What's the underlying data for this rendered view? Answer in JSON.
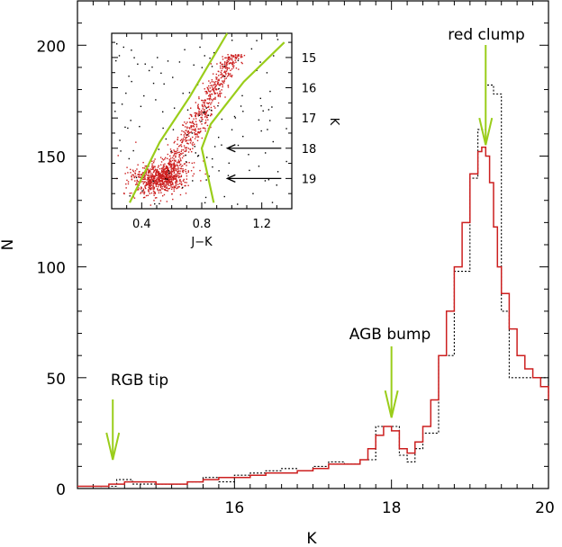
{
  "chart_data": [
    {
      "type": "line",
      "xlabel": "K",
      "ylabel": "N",
      "xlim": [
        14.0,
        20.0
      ],
      "ylim": [
        0,
        220
      ],
      "x_ticks": [
        16,
        18,
        20
      ],
      "y_ticks": [
        0,
        50,
        100,
        150,
        200
      ],
      "grid": false,
      "series": [
        {
          "style": "red solid stepped histogram",
          "color": "#cc1f1f",
          "x": [
            14.0,
            14.2,
            14.4,
            14.5,
            14.6,
            14.8,
            15.0,
            15.2,
            15.4,
            15.6,
            15.8,
            16.0,
            16.2,
            16.4,
            16.6,
            16.8,
            17.0,
            17.2,
            17.4,
            17.6,
            17.7,
            17.8,
            17.9,
            18.0,
            18.1,
            18.2,
            18.3,
            18.4,
            18.5,
            18.6,
            18.7,
            18.8,
            18.9,
            19.0,
            19.1,
            19.15,
            19.2,
            19.25,
            19.3,
            19.35,
            19.4,
            19.5,
            19.6,
            19.7,
            19.8,
            19.9,
            20.0
          ],
          "values": [
            1,
            1,
            2,
            2,
            3,
            3,
            2,
            2,
            3,
            4,
            5,
            5,
            6,
            7,
            7,
            8,
            9,
            11,
            11,
            13,
            18,
            24,
            28,
            26,
            18,
            16,
            21,
            28,
            40,
            60,
            80,
            100,
            120,
            142,
            152,
            154,
            150,
            138,
            118,
            100,
            88,
            72,
            60,
            54,
            50,
            46,
            40
          ]
        },
        {
          "style": "black dotted stepped histogram",
          "color": "#000000",
          "x": [
            14.0,
            14.3,
            14.5,
            14.7,
            15.0,
            15.4,
            15.6,
            15.8,
            16.0,
            16.2,
            16.4,
            16.6,
            16.8,
            17.0,
            17.2,
            17.4,
            17.6,
            17.8,
            18.0,
            18.1,
            18.2,
            18.3,
            18.4,
            18.6,
            18.8,
            19.0,
            19.1,
            19.2,
            19.3,
            19.4,
            19.5,
            19.7,
            20.0
          ],
          "values": [
            0,
            1,
            4,
            2,
            2,
            3,
            5,
            3,
            6,
            7,
            8,
            9,
            8,
            10,
            12,
            11,
            13,
            28,
            28,
            15,
            12,
            18,
            25,
            60,
            98,
            140,
            162,
            182,
            178,
            80,
            50,
            50,
            40
          ]
        }
      ],
      "annotations": [
        {
          "text": "red clump",
          "x": 19.2,
          "arrow_to_y": 155,
          "arrow_color": "#9acd1a"
        },
        {
          "text": "AGB bump",
          "x": 18.0,
          "arrow_to_y": 32,
          "arrow_color": "#9acd1a"
        },
        {
          "text": "RGB tip",
          "x": 14.45,
          "arrow_to_y": 13,
          "arrow_color": "#9acd1a"
        }
      ]
    },
    {
      "type": "scatter",
      "inset": true,
      "xlabel": "J−K",
      "ylabel": "K",
      "xlim": [
        0.2,
        1.4
      ],
      "ylim": [
        20.0,
        14.2
      ],
      "x_ticks": [
        0.4,
        0.8,
        1.2
      ],
      "y_ticks": [
        15,
        16,
        17,
        18,
        19
      ],
      "y_axis_side": "right",
      "grid": false,
      "lines": [
        {
          "color": "#9acd1a",
          "x": [
            0.32,
            0.52,
            0.72,
            0.97
          ],
          "y": [
            19.8,
            17.8,
            16.3,
            14.2
          ]
        },
        {
          "color": "#9acd1a",
          "x": [
            0.88,
            0.8,
            0.86,
            1.08,
            1.35
          ],
          "y": [
            19.8,
            18.0,
            17.2,
            15.8,
            14.5
          ]
        }
      ],
      "arrows": [
        {
          "y": 18.0,
          "from_x": 1.33,
          "to_x": 0.97,
          "color": "#000000"
        },
        {
          "y": 19.0,
          "from_x": 1.33,
          "to_x": 0.97,
          "color": "#000000"
        }
      ],
      "points_note": "red and black dots of the red giant branch with a dense clump near J-K 0.4–0.8, K 18.5–19.5"
    }
  ]
}
